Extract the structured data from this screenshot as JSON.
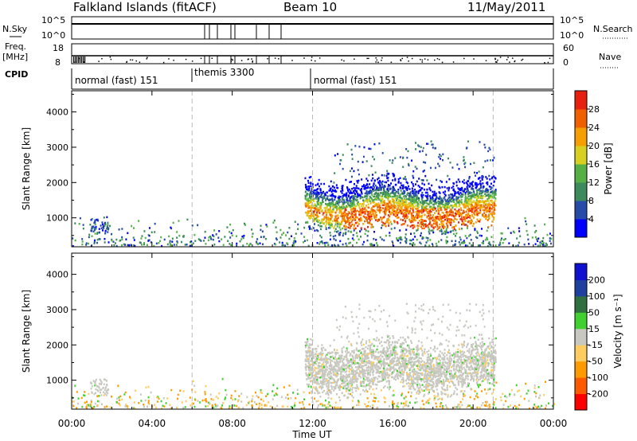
{
  "header": {
    "station": "Falkland Islands (fitACF)",
    "beam": "Beam 10",
    "date": "11/May/2011"
  },
  "strip_labels": {
    "nsky": "N.Sky",
    "nsky_top": "10^5",
    "nsky_bottom": "10^0",
    "freq": "Freq.",
    "freq_unit": "[MHz]",
    "freq_top": "18",
    "freq_bottom": "8",
    "cpid": "CPID",
    "nsearch": "N.Search",
    "nsearch_top": "10^5",
    "nsearch_bottom": "10^0",
    "nave": "Nave",
    "nave_top": "60",
    "nave_bottom": "0"
  },
  "cpid_segments": [
    {
      "label": "normal (fast) 151",
      "start": "00:00"
    },
    {
      "label": "themis 3300",
      "start": "06:00"
    },
    {
      "label": "normal (fast) 151",
      "start": "12:00"
    }
  ],
  "colors": {
    "power_scale": [
      "#0000ff",
      "#264ba8",
      "#3d8a5c",
      "#55b046",
      "#d8d020",
      "#f5a000",
      "#f06000",
      "#e82010"
    ],
    "velocity_scale": [
      "#ff0000",
      "#ff5a00",
      "#ff9a00",
      "#ffcc60",
      "#c8c8c0",
      "#40d030",
      "#307040",
      "#2040a0",
      "#1010d0"
    ]
  },
  "chart_data": [
    {
      "type": "heatmap",
      "name": "power",
      "ylabel": "Slant Range [km]",
      "yticks": [
        1000,
        2000,
        3000,
        4000
      ],
      "ylim": [
        180,
        4600
      ],
      "xlim": [
        "00:00",
        "24:00"
      ],
      "colorbar_label": "Power [dB]",
      "colorbar_ticks": [
        "4",
        "8",
        "12",
        "16",
        "20",
        "24",
        "28"
      ],
      "colorbar_range": [
        0,
        32
      ]
    },
    {
      "type": "heatmap",
      "name": "velocity",
      "ylabel": "Slant Range [km]",
      "yticks": [
        1000,
        2000,
        3000,
        4000
      ],
      "ylim": [
        180,
        4600
      ],
      "xlim": [
        "00:00",
        "24:00"
      ],
      "colorbar_label": "Velocity [m s⁻¹]",
      "colorbar_ticks": [
        "200",
        "100",
        "50",
        "15",
        "-15",
        "-50",
        "-100",
        "-200"
      ]
    }
  ],
  "xaxis": {
    "label": "Time UT",
    "ticks": [
      "00:00",
      "04:00",
      "08:00",
      "12:00",
      "16:00",
      "20:00",
      "00:00"
    ],
    "tick_hours": [
      0,
      4,
      8,
      12,
      16,
      20,
      24
    ],
    "dashed_hours": [
      6,
      12,
      21
    ]
  }
}
